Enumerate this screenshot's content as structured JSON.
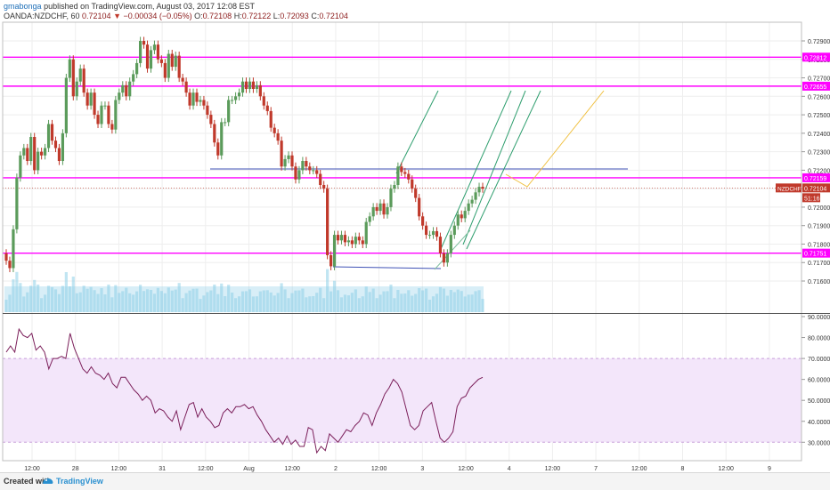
{
  "header": {
    "author": "gmabonga",
    "published_text": "published on TradingView.com, August 03, 2017 12:08 EST",
    "symbol_line": "OANDA:NZDCHF, 60",
    "last": "0.72104",
    "change": "−0.00034 (−0.05%)",
    "open_label": "O:",
    "open": "0.72108",
    "high_label": "H:",
    "high": "0.72122",
    "low_label": "L:",
    "low": "0.72093",
    "close_label": "C:",
    "close": "0.72104"
  },
  "footer": {
    "created_label": "Created with",
    "brand": "TradingView"
  },
  "colors": {
    "up": "#5b9b5b",
    "down": "#c0392b",
    "magenta": "#ff00ff",
    "blue_line": "#3f51b5",
    "green_line": "#2e9e6e",
    "orange_line": "#f0c040",
    "rsi_line": "#7b1f5a",
    "rsi_band": "#f3e6fa",
    "volume": "#8ecfe8"
  },
  "chart_data": [
    {
      "type": "candlestick",
      "symbol": "OANDA:NZDCHF",
      "interval": "60",
      "ylim": [
        0.7155,
        0.7301
      ],
      "y_ticks": [
        "0.72900",
        "0.72800",
        "0.72700",
        "0.72600",
        "0.72500",
        "0.72400",
        "0.72300",
        "0.72200",
        "0.72100",
        "0.72000",
        "0.71900",
        "0.71800",
        "0.71700",
        "0.71600"
      ],
      "x_ticks": [
        "12:00",
        "28",
        "12:00",
        "31",
        "12:00",
        "Aug",
        "12:00",
        "2",
        "12:00",
        "3",
        "12:00",
        "4",
        "12:00",
        "7",
        "12:00",
        "8",
        "12:00",
        "9"
      ],
      "closes": [
        0.7171,
        0.7167,
        0.7188,
        0.7216,
        0.7228,
        0.7232,
        0.7225,
        0.7238,
        0.722,
        0.723,
        0.7228,
        0.7232,
        0.7245,
        0.7236,
        0.7232,
        0.7225,
        0.724,
        0.727,
        0.728,
        0.726,
        0.7268,
        0.7275,
        0.7262,
        0.7255,
        0.7262,
        0.725,
        0.7245,
        0.7255,
        0.7255,
        0.7245,
        0.7242,
        0.7258,
        0.7262,
        0.7266,
        0.726,
        0.7268,
        0.7272,
        0.7278,
        0.729,
        0.7288,
        0.7275,
        0.7285,
        0.7288,
        0.728,
        0.7278,
        0.727,
        0.7283,
        0.7276,
        0.7282,
        0.727,
        0.7268,
        0.7262,
        0.7255,
        0.7262,
        0.7257,
        0.7258,
        0.7255,
        0.725,
        0.7245,
        0.7235,
        0.7228,
        0.7246,
        0.7246,
        0.7258,
        0.7258,
        0.726,
        0.7262,
        0.7268,
        0.7264,
        0.7268,
        0.7264,
        0.7266,
        0.726,
        0.7255,
        0.7252,
        0.7243,
        0.724,
        0.7236,
        0.7222,
        0.7226,
        0.7228,
        0.7222,
        0.7215,
        0.722,
        0.7225,
        0.7222,
        0.722,
        0.722,
        0.7218,
        0.7212,
        0.721,
        0.7174,
        0.7168,
        0.7185,
        0.7182,
        0.7185,
        0.7181,
        0.7182,
        0.718,
        0.7184,
        0.7182,
        0.718,
        0.7192,
        0.7195,
        0.72,
        0.7198,
        0.7202,
        0.7196,
        0.72,
        0.721,
        0.7212,
        0.7222,
        0.7219,
        0.7218,
        0.7215,
        0.721,
        0.7205,
        0.7195,
        0.719,
        0.7185,
        0.7185,
        0.7187,
        0.7184,
        0.7175,
        0.717,
        0.7175,
        0.7185,
        0.719,
        0.7196,
        0.7194,
        0.7198,
        0.7202,
        0.7204,
        0.7208,
        0.7211,
        0.721
      ],
      "horizontal_levels": [
        {
          "value": 0.72812,
          "label": "0.72812",
          "color": "#ff00ff"
        },
        {
          "value": 0.72655,
          "label": "0.72655",
          "color": "#ff00ff"
        },
        {
          "value": 0.72159,
          "label": "0.72159",
          "color": "#ff00ff"
        },
        {
          "value": 0.71751,
          "label": "0.71751",
          "color": "#ff00ff"
        }
      ],
      "price_label": {
        "symbol": "NZDCHF",
        "value": "0.72104",
        "countdown": "51:16"
      }
    },
    {
      "type": "line",
      "indicator": "RSI",
      "ylim": [
        22,
        92
      ],
      "y_ticks": [
        "90.0000",
        "80.0000",
        "70.0000",
        "60.0000",
        "50.0000",
        "40.0000",
        "30.0000"
      ],
      "band": [
        30,
        70
      ],
      "values": [
        73,
        76,
        73,
        84,
        81,
        80,
        82,
        74,
        76,
        73,
        65,
        70,
        70,
        71,
        70,
        82,
        75,
        70,
        65,
        63,
        66,
        63,
        62,
        60,
        63,
        58,
        56,
        61,
        61,
        58,
        55,
        53,
        50,
        52,
        50,
        44,
        46,
        45,
        42,
        40,
        45,
        36,
        42,
        48,
        49,
        42,
        46,
        42,
        40,
        37,
        38,
        44,
        46,
        44,
        47,
        47,
        48,
        46,
        47,
        43,
        40,
        36,
        33,
        30,
        32,
        29,
        33,
        29,
        31,
        28,
        28,
        37,
        36,
        25,
        28,
        26,
        34,
        32,
        30,
        33,
        36,
        35,
        38,
        40,
        44,
        43,
        38,
        44,
        48,
        53,
        56,
        60,
        58,
        54,
        46,
        38,
        36,
        38,
        45,
        47,
        49,
        40,
        32,
        30,
        32,
        35,
        47,
        51,
        52,
        56,
        58,
        60,
        61
      ]
    }
  ]
}
